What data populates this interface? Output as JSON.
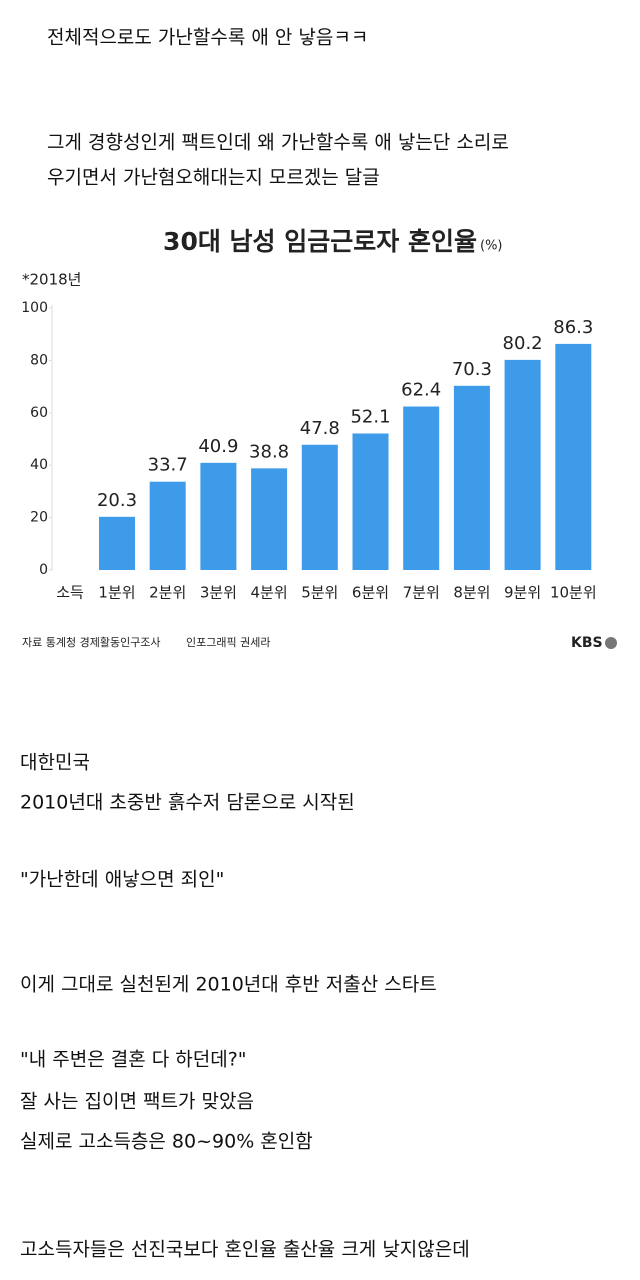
{
  "top_text": [
    "전체적으로도 가난할수록 애 안 낳음ㅋㅋ",
    "그게 경향성인게 팩트인데 왜 가난할수록 애 낳는단 소리로",
    "우기면서 가난혐오해대는지 모르겠는 달글"
  ],
  "chart_data": {
    "type": "bar",
    "title": "30대 남성 임금근로자 혼인율",
    "unit": "(%)",
    "note": "*2018년",
    "x_label": "소득",
    "categories": [
      "1분위",
      "2분위",
      "3분위",
      "4분위",
      "5분위",
      "6분위",
      "7분위",
      "8분위",
      "9분위",
      "10분위"
    ],
    "values": [
      20.3,
      33.7,
      40.9,
      38.8,
      47.8,
      52.1,
      62.4,
      70.3,
      80.2,
      86.3
    ],
    "color": "#3d9be9",
    "ylim": [
      0,
      100
    ],
    "yticks": [
      0,
      20,
      40,
      60,
      80,
      100
    ],
    "grid": false,
    "source": "자료 통계청 경제활동인구조사",
    "credit": "인포그래픽 권세라",
    "logo": "KBS"
  },
  "bottom_text": [
    "대한민국",
    "2010년대 초중반 흙수저 담론으로 시작된",
    "\"가난한데 애낳으면 죄인\"",
    "이게 그대로 실천된게 2010년대 후반 저출산 스타트",
    "\"내 주변은 결혼 다 하던데?\"",
    "잘 사는 집이면 팩트가 맞았음",
    "실제로 고소득층은 80~90% 혼인함",
    "고소득자들은 선진국보다 혼인율 출산율 크게 낮지않은데"
  ]
}
